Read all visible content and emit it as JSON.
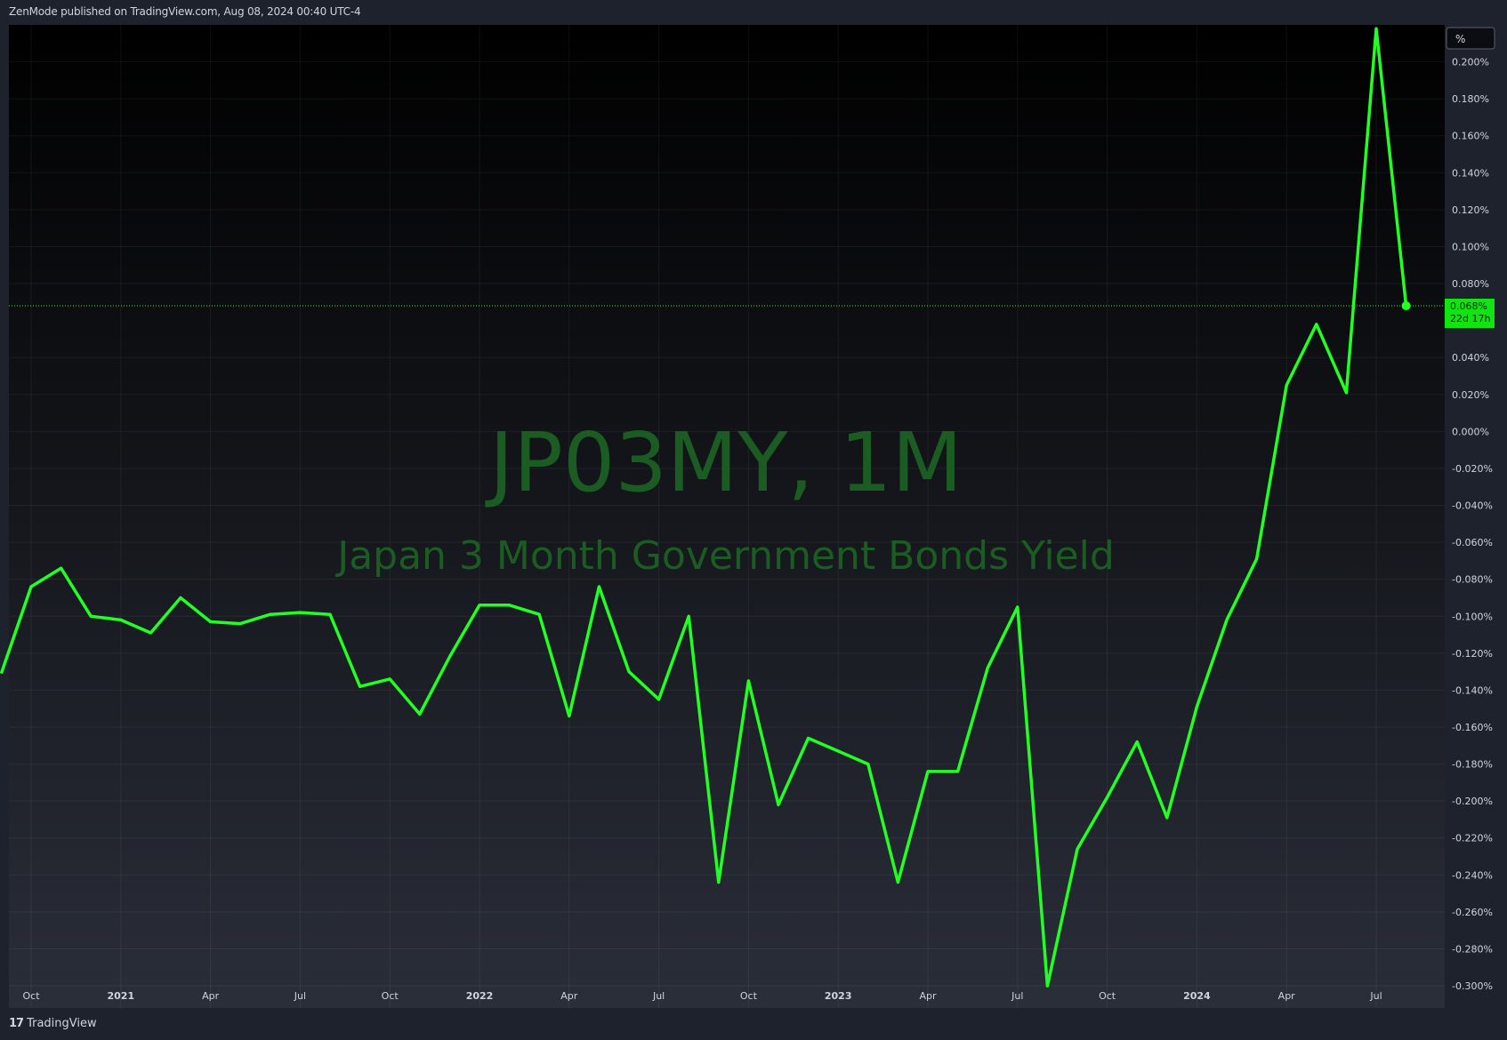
{
  "header": {
    "published": "ZenMode published on TradingView.com, Aug 08, 2024 00:40 UTC-4"
  },
  "footer": {
    "brand": "TradingView",
    "logo_text": "17"
  },
  "scale_button": {
    "label": "%"
  },
  "watermark": {
    "symbol": "JP03MY, 1M",
    "description": "Japan 3 Month Government Bonds Yield"
  },
  "last_price": {
    "value": "0.068%",
    "countdown": "22d 17h"
  },
  "colors": {
    "line": "#22ff22",
    "watermark": "#1a5c22",
    "price_label_bg": "#11e411",
    "background_top": "#000000",
    "background_bottom": "#2a2e39"
  },
  "chart_data": {
    "type": "line",
    "title": "",
    "xlabel": "",
    "ylabel": "",
    "ylim": [
      -0.312,
      0.22
    ],
    "y_unit": "%",
    "y_ticks": [
      0.2,
      0.18,
      0.16,
      0.14,
      0.12,
      0.1,
      0.08,
      0.04,
      0.02,
      0.0,
      -0.02,
      -0.04,
      -0.06,
      -0.08,
      -0.1,
      -0.12,
      -0.14,
      -0.16,
      -0.18,
      -0.2,
      -0.22,
      -0.24,
      -0.26,
      -0.28,
      -0.3
    ],
    "y_tick_labels": [
      "0.200%",
      "0.180%",
      "0.160%",
      "0.140%",
      "0.120%",
      "0.100%",
      "0.080%",
      "0.040%",
      "0.020%",
      "0.000%",
      "-0.020%",
      "-0.040%",
      "-0.060%",
      "-0.080%",
      "-0.100%",
      "-0.120%",
      "-0.140%",
      "-0.160%",
      "-0.180%",
      "-0.200%",
      "-0.220%",
      "-0.240%",
      "-0.260%",
      "-0.280%",
      "-0.300%"
    ],
    "x_ticks": [
      {
        "date": "2020-10",
        "label": "Oct",
        "major": false
      },
      {
        "date": "2021-01",
        "label": "2021",
        "major": true
      },
      {
        "date": "2021-04",
        "label": "Apr",
        "major": false
      },
      {
        "date": "2021-07",
        "label": "Jul",
        "major": false
      },
      {
        "date": "2021-10",
        "label": "Oct",
        "major": false
      },
      {
        "date": "2022-01",
        "label": "2022",
        "major": true
      },
      {
        "date": "2022-04",
        "label": "Apr",
        "major": false
      },
      {
        "date": "2022-07",
        "label": "Jul",
        "major": false
      },
      {
        "date": "2022-10",
        "label": "Oct",
        "major": false
      },
      {
        "date": "2023-01",
        "label": "2023",
        "major": true
      },
      {
        "date": "2023-04",
        "label": "Apr",
        "major": false
      },
      {
        "date": "2023-07",
        "label": "Jul",
        "major": false
      },
      {
        "date": "2023-10",
        "label": "Oct",
        "major": false
      },
      {
        "date": "2024-01",
        "label": "2024",
        "major": true
      },
      {
        "date": "2024-04",
        "label": "Apr",
        "major": false
      },
      {
        "date": "2024-07",
        "label": "Jul",
        "major": false
      }
    ],
    "x": [
      "2020-09",
      "2020-10",
      "2020-11",
      "2020-12",
      "2021-01",
      "2021-02",
      "2021-03",
      "2021-04",
      "2021-05",
      "2021-06",
      "2021-07",
      "2021-08",
      "2021-09",
      "2021-10",
      "2021-11",
      "2021-12",
      "2022-01",
      "2022-02",
      "2022-03",
      "2022-04",
      "2022-05",
      "2022-06",
      "2022-07",
      "2022-08",
      "2022-09",
      "2022-10",
      "2022-11",
      "2022-12",
      "2023-01",
      "2023-02",
      "2023-03",
      "2023-04",
      "2023-05",
      "2023-06",
      "2023-07",
      "2023-08",
      "2023-09",
      "2023-10",
      "2023-11",
      "2023-12",
      "2024-01",
      "2024-02",
      "2024-03",
      "2024-04",
      "2024-05",
      "2024-06",
      "2024-07",
      "2024-08"
    ],
    "series": [
      {
        "values": [
          -0.131,
          -0.084,
          -0.074,
          -0.1,
          -0.102,
          -0.109,
          -0.09,
          -0.103,
          -0.104,
          -0.099,
          -0.098,
          -0.099,
          -0.138,
          -0.134,
          -0.153,
          -0.122,
          -0.094,
          -0.094,
          -0.099,
          -0.154,
          -0.084,
          -0.13,
          -0.145,
          -0.1,
          -0.244,
          -0.135,
          -0.202,
          -0.166,
          -0.173,
          -0.18,
          -0.244,
          -0.184,
          -0.184,
          -0.128,
          -0.095,
          -0.3,
          -0.226,
          -0.198,
          -0.168,
          -0.209,
          -0.149,
          -0.102,
          -0.069,
          0.025,
          0.058,
          0.021,
          0.218,
          0.068
        ]
      }
    ],
    "last_value": 0.068,
    "grid": true,
    "legend": "none"
  }
}
